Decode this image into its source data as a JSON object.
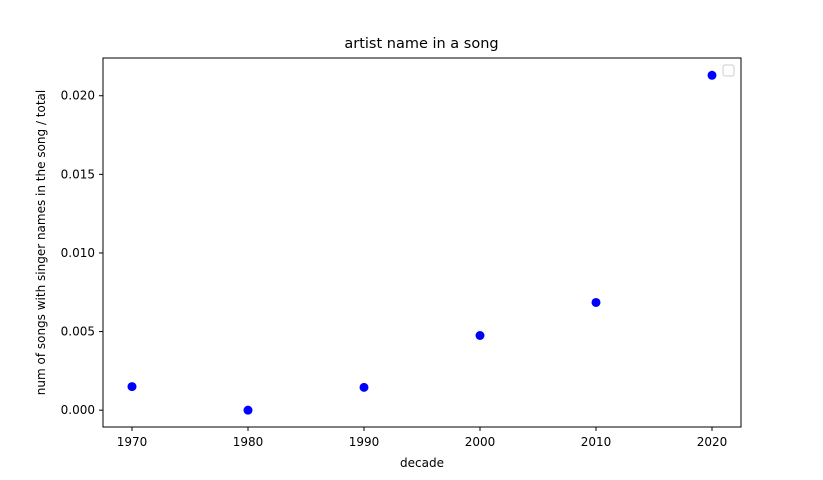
{
  "chart_data": {
    "type": "scatter",
    "title": "artist name in a song",
    "xlabel": "decade",
    "ylabel": "num of songs with singer names in the song / total",
    "x": [
      1970,
      1980,
      1990,
      2000,
      2010,
      2020
    ],
    "y": [
      0.0015,
      0.0,
      0.00145,
      0.00475,
      0.00685,
      0.0213
    ],
    "xlim": [
      1967.5,
      2022.5
    ],
    "ylim": [
      -0.00107,
      0.0224
    ],
    "xticks": [
      1970,
      1980,
      1990,
      2000,
      2010,
      2020
    ],
    "xtick_labels": [
      "1970",
      "1980",
      "1990",
      "2000",
      "2010",
      "2020"
    ],
    "yticks": [
      0.0,
      0.005,
      0.01,
      0.015,
      0.02
    ],
    "ytick_labels": [
      "0.000",
      "0.005",
      "0.010",
      "0.015",
      "0.020"
    ],
    "marker_color": "#0000ff",
    "grid": false,
    "legend": {
      "placement": "upper-right",
      "entries": []
    }
  }
}
